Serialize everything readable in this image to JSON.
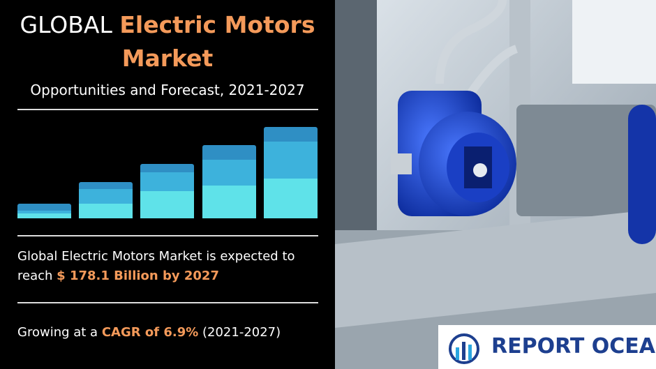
{
  "header": {
    "title_prefix": "GLOBAL",
    "title_highlight_1": "Electric Motors",
    "title_highlight_2": "Market",
    "subtitle": "Opportunities and Forecast, 2021-2027"
  },
  "statement": {
    "text": "Global Electric Motors Market is expected to",
    "text_2": "reach",
    "highlight": "$ 178.1 Billion by 2027"
  },
  "growth": {
    "text": "Growing at a",
    "highlight": "CAGR of 6.9%",
    "period": "(2021-2027)"
  },
  "logo": {
    "text": "REPORT OCEAN"
  }
}
